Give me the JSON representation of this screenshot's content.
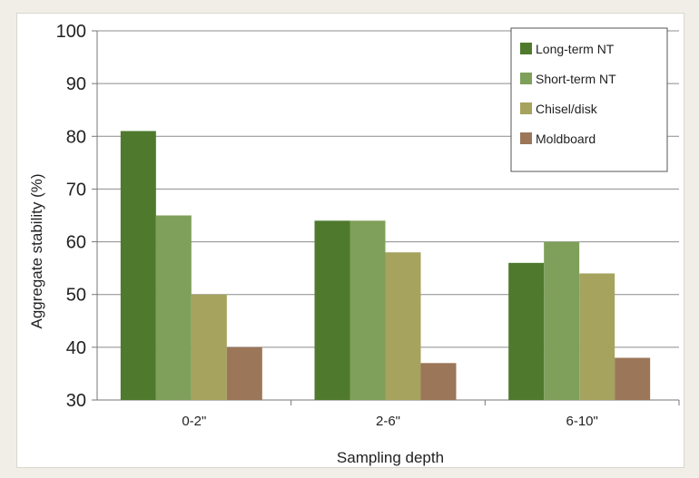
{
  "chart_data": {
    "type": "bar",
    "title": "",
    "xlabel": "Sampling depth",
    "ylabel": "Aggregate stability (%)",
    "ylim": [
      30,
      100
    ],
    "yticks": [
      30,
      40,
      50,
      60,
      70,
      80,
      90,
      100
    ],
    "grid": true,
    "legend_position": "top-right",
    "categories": [
      "0-2\"",
      "2-6\"",
      "6-10\""
    ],
    "series": [
      {
        "name": "Long-term NT",
        "color": "#4f7a2e",
        "values": [
          81,
          64,
          56
        ]
      },
      {
        "name": "Short-term NT",
        "color": "#7fa05a",
        "values": [
          65,
          64,
          60
        ]
      },
      {
        "name": "Chisel/disk",
        "color": "#a5a35e",
        "values": [
          50,
          58,
          54
        ]
      },
      {
        "name": "Moldboard",
        "color": "#9b7659",
        "values": [
          40,
          37,
          38
        ]
      }
    ]
  }
}
